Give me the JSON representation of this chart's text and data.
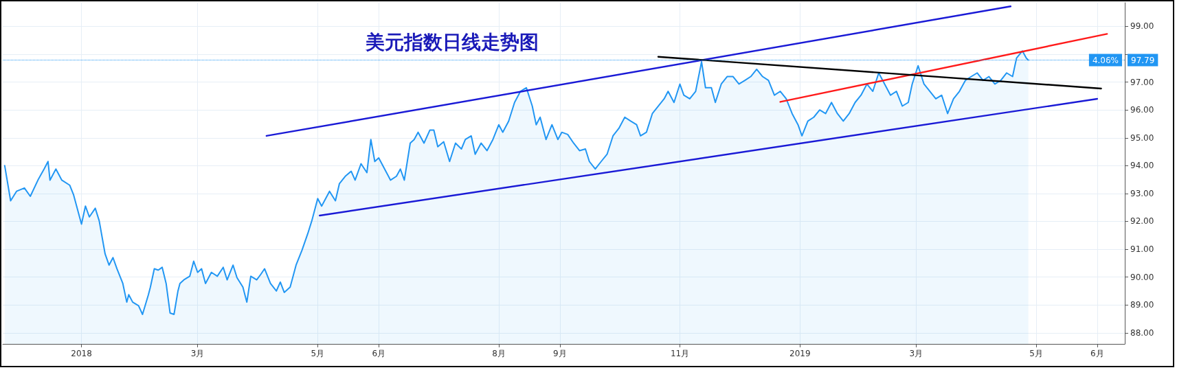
{
  "chart_data": {
    "type": "area",
    "title": "美元指数日线走势图",
    "series": [
      {
        "color": "#2196f3",
        "x": [
          "2017-11-23",
          "2017-11-26",
          "2017-11-29",
          "2017-12-03",
          "2017-12-06",
          "2017-12-10",
          "2017-12-13",
          "2017-12-15",
          "2017-12-16",
          "2017-12-19",
          "2017-12-22",
          "2017-12-26",
          "2017-12-28",
          "2018-01-01",
          "2018-01-03",
          "2018-01-05",
          "2018-01-08",
          "2018-01-10",
          "2018-01-13",
          "2018-01-15",
          "2018-01-17",
          "2018-01-19",
          "2018-01-22",
          "2018-01-24",
          "2018-01-25",
          "2018-01-27",
          "2018-01-30",
          "2018-02-01",
          "2018-02-04",
          "2018-02-05",
          "2018-02-07",
          "2018-02-09",
          "2018-02-11",
          "2018-02-13",
          "2018-02-15",
          "2018-02-17",
          "2018-02-19",
          "2018-02-20",
          "2018-02-22",
          "2018-02-25",
          "2018-02-27",
          "2018-03-01",
          "2018-03-03",
          "2018-03-05",
          "2018-03-08",
          "2018-03-11",
          "2018-03-14",
          "2018-03-16",
          "2018-03-19",
          "2018-03-21",
          "2018-03-24",
          "2018-03-26",
          "2018-03-28",
          "2018-03-31",
          "2018-04-02",
          "2018-04-04",
          "2018-04-07",
          "2018-04-10",
          "2018-04-12",
          "2018-04-14",
          "2018-04-17",
          "2018-04-20",
          "2018-04-23",
          "2018-04-26",
          "2018-04-28",
          "2018-05-01",
          "2018-05-03",
          "2018-05-07",
          "2018-05-10",
          "2018-05-12",
          "2018-05-15",
          "2018-05-18",
          "2018-05-20",
          "2018-05-23",
          "2018-05-26",
          "2018-05-28",
          "2018-05-30",
          "2018-06-01",
          "2018-06-04",
          "2018-06-07",
          "2018-06-10",
          "2018-06-12",
          "2018-06-14",
          "2018-06-17",
          "2018-06-19",
          "2018-06-21",
          "2018-06-24",
          "2018-06-27",
          "2018-06-29",
          "2018-07-01",
          "2018-07-04",
          "2018-07-07",
          "2018-07-10",
          "2018-07-13",
          "2018-07-15",
          "2018-07-18",
          "2018-07-20",
          "2018-07-23",
          "2018-07-26",
          "2018-07-29",
          "2018-08-01",
          "2018-08-03",
          "2018-08-06",
          "2018-08-09",
          "2018-08-12",
          "2018-08-15",
          "2018-08-18",
          "2018-08-20",
          "2018-08-22",
          "2018-08-25",
          "2018-08-28",
          "2018-08-31",
          "2018-09-02",
          "2018-09-05",
          "2018-09-08",
          "2018-09-11",
          "2018-09-14",
          "2018-09-16",
          "2018-09-19",
          "2018-09-22",
          "2018-09-25",
          "2018-09-28",
          "2018-10-01",
          "2018-10-04",
          "2018-10-07",
          "2018-10-10",
          "2018-10-12",
          "2018-10-15",
          "2018-10-18",
          "2018-10-21",
          "2018-10-24",
          "2018-10-26",
          "2018-10-29",
          "2018-11-01",
          "2018-11-03",
          "2018-11-06",
          "2018-11-09",
          "2018-11-12",
          "2018-11-14",
          "2018-11-17",
          "2018-11-19",
          "2018-11-22",
          "2018-11-25",
          "2018-11-28",
          "2018-12-01",
          "2018-12-04",
          "2018-12-07",
          "2018-12-10",
          "2018-12-13",
          "2018-12-16",
          "2018-12-19",
          "2018-12-22",
          "2018-12-25",
          "2018-12-28",
          "2018-12-31",
          "2019-01-02",
          "2019-01-05",
          "2019-01-08",
          "2019-01-11",
          "2019-01-14",
          "2019-01-17",
          "2019-01-20",
          "2019-01-23",
          "2019-01-26",
          "2019-01-29",
          "2019-02-01",
          "2019-02-04",
          "2019-02-07",
          "2019-02-10",
          "2019-02-13",
          "2019-02-16",
          "2019-02-19",
          "2019-02-22",
          "2019-02-25",
          "2019-02-27",
          "2019-03-02",
          "2019-03-05",
          "2019-03-08",
          "2019-03-11",
          "2019-03-14",
          "2019-03-17",
          "2019-03-20",
          "2019-03-23",
          "2019-03-26",
          "2019-03-29",
          "2019-04-01",
          "2019-04-04",
          "2019-04-07",
          "2019-04-10",
          "2019-04-13",
          "2019-04-16",
          "2019-04-19",
          "2019-04-21",
          "2019-04-24",
          "2019-04-26",
          "2019-04-27"
        ],
        "values": [
          94.0,
          92.74,
          93.08,
          93.2,
          92.9,
          93.5,
          93.88,
          94.15,
          93.48,
          93.88,
          93.48,
          93.3,
          92.95,
          91.9,
          92.55,
          92.16,
          92.47,
          92.02,
          90.83,
          90.43,
          90.7,
          90.3,
          89.77,
          89.1,
          89.37,
          89.1,
          88.97,
          88.66,
          89.37,
          89.64,
          90.3,
          90.25,
          90.35,
          89.77,
          88.71,
          88.66,
          89.5,
          89.77,
          89.9,
          90.03,
          90.57,
          90.17,
          90.3,
          89.77,
          90.17,
          90.03,
          90.35,
          89.9,
          90.43,
          89.98,
          89.64,
          89.1,
          90.03,
          89.9,
          90.09,
          90.3,
          89.77,
          89.5,
          89.82,
          89.45,
          89.64,
          90.43,
          90.96,
          91.57,
          92.02,
          92.82,
          92.55,
          93.08,
          92.74,
          93.35,
          93.62,
          93.8,
          93.48,
          94.07,
          93.75,
          94.94,
          94.15,
          94.28,
          93.88,
          93.48,
          93.62,
          93.88,
          93.48,
          94.81,
          94.94,
          95.2,
          94.81,
          95.28,
          95.28,
          94.68,
          94.86,
          94.15,
          94.81,
          94.6,
          94.94,
          95.07,
          94.41,
          94.81,
          94.54,
          94.94,
          95.47,
          95.2,
          95.6,
          96.27,
          96.67,
          96.8,
          96.14,
          95.47,
          95.74,
          94.94,
          95.47,
          94.94,
          95.2,
          95.12,
          94.81,
          94.54,
          94.6,
          94.15,
          93.88,
          94.15,
          94.41,
          95.07,
          95.34,
          95.74,
          95.6,
          95.47,
          95.07,
          95.2,
          95.87,
          96.14,
          96.4,
          96.67,
          96.27,
          96.93,
          96.53,
          96.4,
          96.67,
          97.73,
          96.8,
          96.8,
          96.27,
          96.93,
          97.2,
          97.2,
          96.93,
          97.06,
          97.2,
          97.46,
          97.2,
          97.06,
          96.53,
          96.67,
          96.4,
          95.87,
          95.47,
          95.07,
          95.6,
          95.74,
          96.0,
          95.87,
          96.27,
          95.87,
          95.6,
          95.87,
          96.27,
          96.53,
          96.93,
          96.67,
          97.33,
          96.93,
          96.53,
          96.67,
          96.14,
          96.27,
          96.93,
          97.59,
          96.93,
          96.67,
          96.4,
          96.53,
          95.87,
          96.4,
          96.67,
          97.06,
          97.2,
          97.33,
          97.06,
          97.2,
          96.93,
          97.06,
          97.33,
          97.2,
          97.86,
          98.12,
          97.86,
          97.79
        ]
      },
      {
        "type": "line",
        "color": "#1a1ad6",
        "x": [
          "2018-04-05",
          "2019-04-18"
        ],
        "values": [
          95.07,
          99.72
        ]
      },
      {
        "type": "line",
        "color": "#1a1ad6",
        "x": [
          "2018-05-02",
          "2019-06-01"
        ],
        "values": [
          92.21,
          96.4
        ]
      },
      {
        "type": "line",
        "color": "#ff1a1a",
        "x": [
          "2018-12-22",
          "2019-06-06"
        ],
        "values": [
          96.29,
          98.73
        ]
      },
      {
        "type": "line",
        "color": "#000000",
        "x": [
          "2018-10-21",
          "2019-06-03"
        ],
        "values": [
          97.91,
          96.77
        ]
      }
    ],
    "xlim": [
      "2017-11-22",
      "2019-06-15"
    ],
    "xticks": [
      {
        "value": "2018-01-01",
        "label": "2018"
      },
      {
        "value": "2018-03-01",
        "label": "3月"
      },
      {
        "value": "2018-05-01",
        "label": "5月"
      },
      {
        "value": "2018-06-01",
        "label": "6月"
      },
      {
        "value": "2018-08-01",
        "label": "8月"
      },
      {
        "value": "2018-09-01",
        "label": "9月"
      },
      {
        "value": "2018-11-01",
        "label": "11月"
      },
      {
        "value": "2019-01-01",
        "label": "2019"
      },
      {
        "value": "2019-03-01",
        "label": "3月"
      },
      {
        "value": "2019-05-01",
        "label": "5月"
      },
      {
        "value": "2019-06-01",
        "label": "6月"
      }
    ],
    "ylim": [
      87.6,
      99.85
    ],
    "yticks": [
      {
        "value": 88,
        "label": "88.00"
      },
      {
        "value": 89,
        "label": "89.00"
      },
      {
        "value": 90,
        "label": "90.00"
      },
      {
        "value": 91,
        "label": "91.00"
      },
      {
        "value": 92,
        "label": "92.00"
      },
      {
        "value": 93,
        "label": "93.00"
      },
      {
        "value": 94,
        "label": "94.00"
      },
      {
        "value": 95,
        "label": "95.00"
      },
      {
        "value": 96,
        "label": "96.00"
      },
      {
        "value": 97,
        "label": "97.00"
      },
      {
        "value": 98,
        "label": null
      },
      {
        "value": 99,
        "label": "99.00"
      }
    ],
    "ref_lines": [
      {
        "axis": "y",
        "value": 97.79,
        "label": "97.79",
        "color": "#2196f3",
        "line_style": "dotted"
      }
    ],
    "annotations": [
      "4.06%"
    ],
    "grid": true,
    "marker": "none",
    "line_style": "solid"
  }
}
